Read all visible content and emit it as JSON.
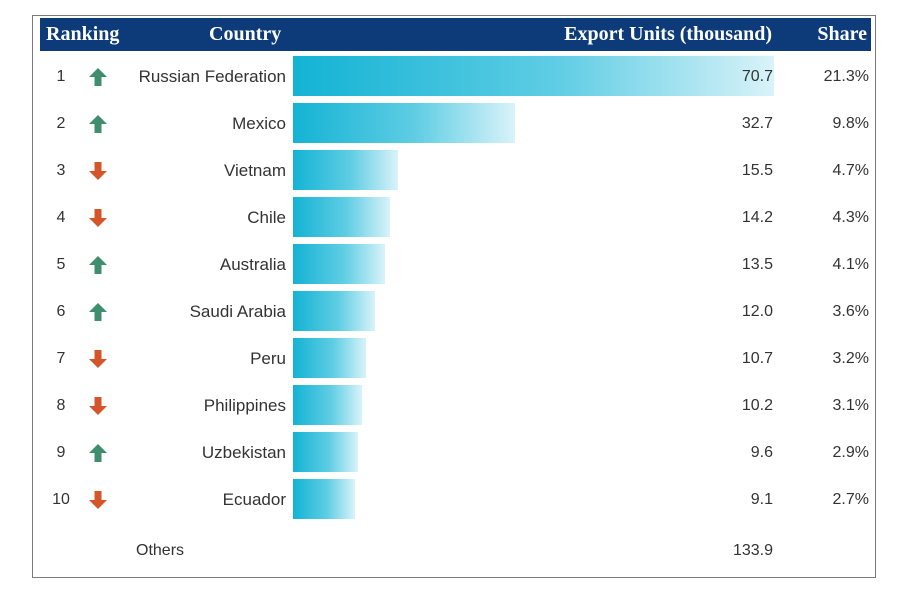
{
  "header": {
    "ranking": "Ranking",
    "country": "Country",
    "units": "Export Units (thousand)",
    "share": "Share"
  },
  "colors": {
    "header_bg": "#0d3b7a",
    "up": "#3f8f6f",
    "down": "#d5552a",
    "bar_start": "#13b3d4",
    "bar_end": "#d9f3f9"
  },
  "chart_data": {
    "type": "bar",
    "orientation": "horizontal",
    "categories": [
      "Russian Federation",
      "Mexico",
      "Vietnam",
      "Chile",
      "Australia",
      "Saudi Arabia",
      "Peru",
      "Philippines",
      "Uzbekistan",
      "Ecuador"
    ],
    "values": [
      70.7,
      32.7,
      15.5,
      14.2,
      13.5,
      12.0,
      10.7,
      10.2,
      9.6,
      9.1
    ],
    "rows": [
      {
        "rank": "1",
        "country": "Russian Federation",
        "value": "70.7",
        "share": "21.3%",
        "trend": "up"
      },
      {
        "rank": "2",
        "country": "Mexico",
        "value": "32.7",
        "share": "9.8%",
        "trend": "up"
      },
      {
        "rank": "3",
        "country": "Vietnam",
        "value": "15.5",
        "share": "4.7%",
        "trend": "down"
      },
      {
        "rank": "4",
        "country": "Chile",
        "value": "14.2",
        "share": "4.3%",
        "trend": "down"
      },
      {
        "rank": "5",
        "country": "Australia",
        "value": "13.5",
        "share": "4.1%",
        "trend": "up"
      },
      {
        "rank": "6",
        "country": "Saudi Arabia",
        "value": "12.0",
        "share": "3.6%",
        "trend": "up"
      },
      {
        "rank": "7",
        "country": "Peru",
        "value": "10.7",
        "share": "3.2%",
        "trend": "down"
      },
      {
        "rank": "8",
        "country": "Philippines",
        "value": "10.2",
        "share": "3.1%",
        "trend": "down"
      },
      {
        "rank": "9",
        "country": "Uzbekistan",
        "value": "9.6",
        "share": "2.9%",
        "trend": "up"
      },
      {
        "rank": "10",
        "country": "Ecuador",
        "value": "9.1",
        "share": "2.7%",
        "trend": "down"
      }
    ],
    "others": {
      "label": "Others",
      "value": "133.9"
    },
    "xlim": [
      0,
      70.7
    ]
  }
}
